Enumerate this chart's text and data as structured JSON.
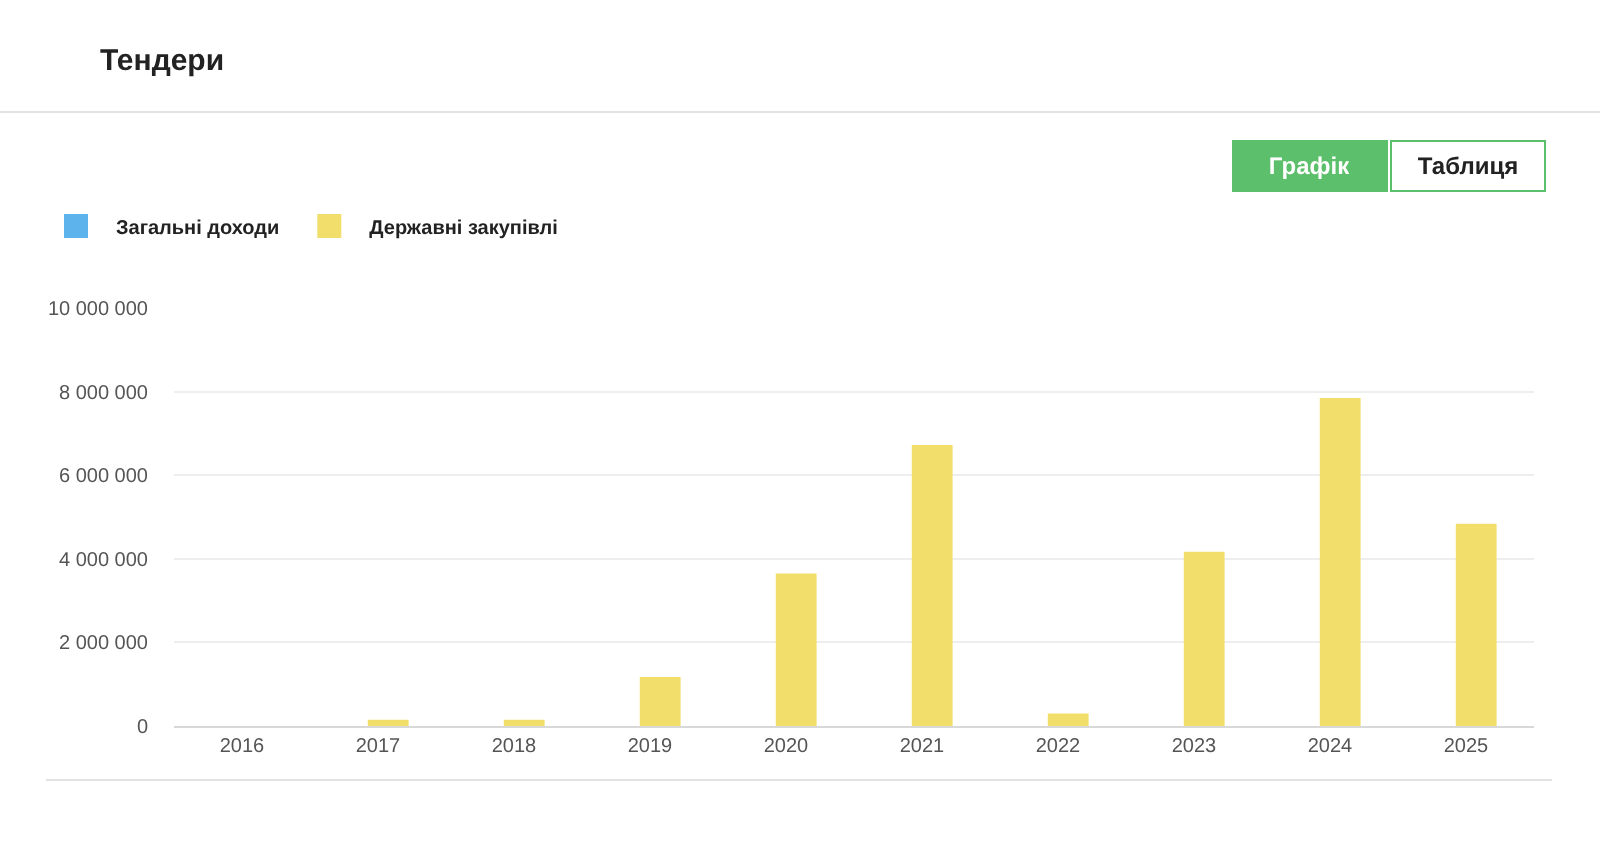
{
  "chart_data": {
    "type": "bar",
    "title": "Тендери",
    "annotations": [
      "Графік",
      "Таблиця"
    ],
    "categories": [
      "2016",
      "2017",
      "2018",
      "2019",
      "2020",
      "2021",
      "2022",
      "2023",
      "2024",
      "2025"
    ],
    "series": [
      {
        "name": "Загальні доходи",
        "color": "#5db4ec",
        "values": [
          null,
          null,
          null,
          null,
          null,
          null,
          null,
          null,
          null,
          null
        ]
      },
      {
        "name": "Державні закупівлі",
        "color": "#f2df6b",
        "values": [
          0,
          150000,
          150000,
          1170000,
          3650000,
          6720000,
          300000,
          4170000,
          7850000,
          4840000
        ]
      }
    ],
    "ylim": [
      0,
      10000000
    ],
    "yticks": [
      0,
      {
        "value": 2000000,
        "label": "2 000 000"
      },
      {
        "value": 4000000,
        "label": "4 000 000"
      },
      {
        "value": 6000000,
        "label": "6 000 000"
      },
      {
        "value": 8000000,
        "label": "8 000 000"
      },
      {
        "value": 10000000,
        "label": "10 000 000"
      }
    ],
    "grid": "y",
    "legend": "top left"
  }
}
